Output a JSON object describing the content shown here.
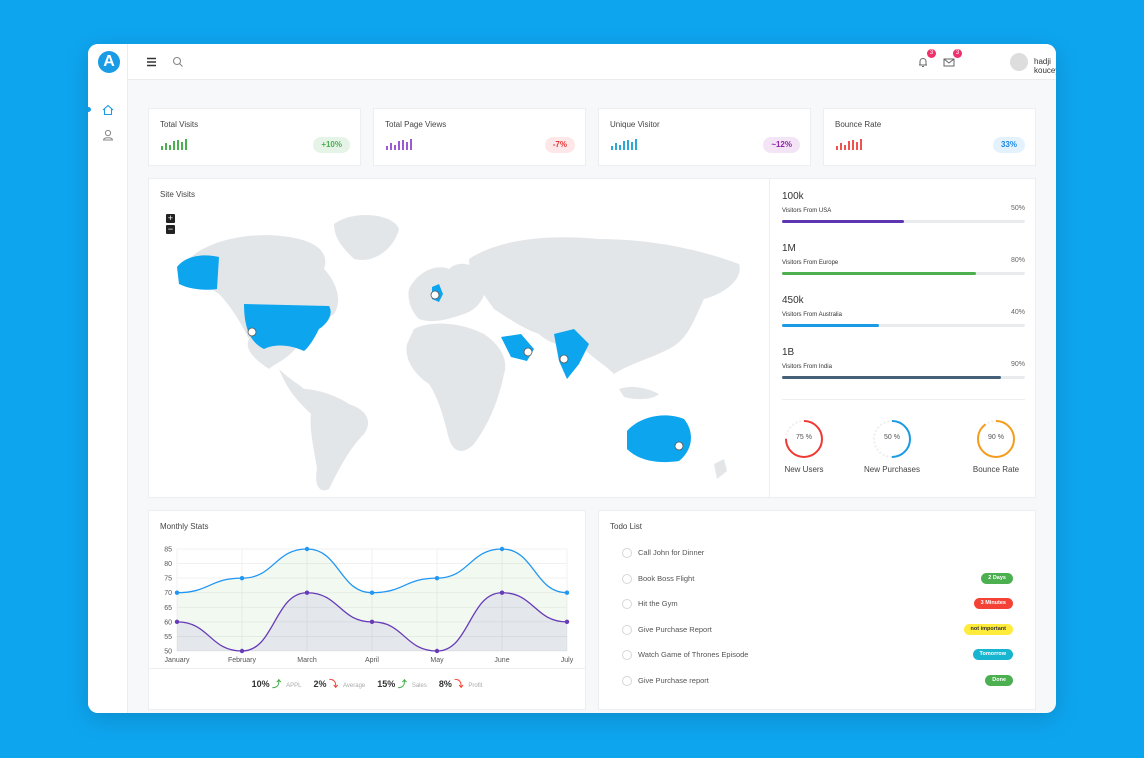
{
  "app": {
    "logo_letter": "A",
    "username": "hadji kouceyla",
    "notifications": "3",
    "messages": "3"
  },
  "stats": [
    {
      "title": "Total Visits",
      "badge": "+10%",
      "color": "#4caf50",
      "badge_bg": "#e6f4e7"
    },
    {
      "title": "Total Page Views",
      "badge": "-7%",
      "color": "#9c5bd2",
      "badge_bg": "#fde7e8",
      "badge_color": "#e53935"
    },
    {
      "title": "Unique Visitor",
      "badge": "~12%",
      "color": "#2aa8d8",
      "badge_bg": "#f3e5f5",
      "badge_color": "#8e24aa"
    },
    {
      "title": "Bounce Rate",
      "badge": "33%",
      "color": "#ef5350",
      "badge_bg": "#e3f2fd",
      "badge_color": "#1e88e5"
    }
  ],
  "site_visits": {
    "title": "Site Visits",
    "zoom_in": "+",
    "zoom_out": "−",
    "regions": [
      {
        "value": "100k",
        "label": "Visitors From USA",
        "percent": "50%",
        "fraction": 0.5,
        "color": "#5e35b1"
      },
      {
        "value": "1M",
        "label": "Visitors From Europe",
        "percent": "80%",
        "fraction": 0.8,
        "color": "#4caf50"
      },
      {
        "value": "450k",
        "label": "Visitors From Australia",
        "percent": "40%",
        "fraction": 0.4,
        "color": "#1a9be6"
      },
      {
        "value": "1B",
        "label": "Visitors From India",
        "percent": "90%",
        "fraction": 0.9,
        "color": "#456078"
      }
    ],
    "gauges": [
      {
        "text": "75 %",
        "label": "New Users",
        "fraction": 0.75,
        "color": "#ef3b35"
      },
      {
        "text": "50 %",
        "label": "New Purchases",
        "fraction": 0.5,
        "color": "#1a9be6"
      },
      {
        "text": "90 %",
        "label": "Bounce Rate",
        "fraction": 0.9,
        "color": "#f59c1a"
      }
    ]
  },
  "monthly": {
    "title": "Monthly Stats",
    "legend": [
      {
        "value": "10%",
        "dir": "up",
        "label": "APPL"
      },
      {
        "value": "2%",
        "dir": "down",
        "label": "Average"
      },
      {
        "value": "15%",
        "dir": "up",
        "label": "Sales"
      },
      {
        "value": "8%",
        "dir": "down",
        "label": "Profit"
      }
    ]
  },
  "chart_data": {
    "type": "area",
    "categories": [
      "January",
      "February",
      "March",
      "April",
      "May",
      "June",
      "July"
    ],
    "series": [
      {
        "values": [
          70,
          75,
          85,
          70,
          75,
          85,
          70
        ],
        "color": "#2196f3"
      },
      {
        "values": [
          60,
          50,
          70,
          60,
          50,
          70,
          60
        ],
        "color": "#673ab7"
      }
    ],
    "yticks": [
      85,
      80,
      75,
      70,
      65,
      60,
      55,
      50
    ],
    "ylim": [
      50,
      85
    ],
    "grid": true
  },
  "todo": {
    "title": "Todo List",
    "items": [
      {
        "text": "Call John for Dinner",
        "tag": "",
        "tag_color": ""
      },
      {
        "text": "Book Boss Flight",
        "tag": "2 Days",
        "tag_color": "#4caf50"
      },
      {
        "text": "Hit the Gym",
        "tag": "3 Minutes",
        "tag_color": "#f44336"
      },
      {
        "text": "Give Purchase Report",
        "tag": "not important",
        "tag_color": "#ffeb3b"
      },
      {
        "text": "Watch Game of Thrones Episode",
        "tag": "Tomorrow",
        "tag_color": "#17b5cf"
      },
      {
        "text": "Give Purchase report",
        "tag": "Done",
        "tag_color": "#4caf50"
      }
    ]
  }
}
